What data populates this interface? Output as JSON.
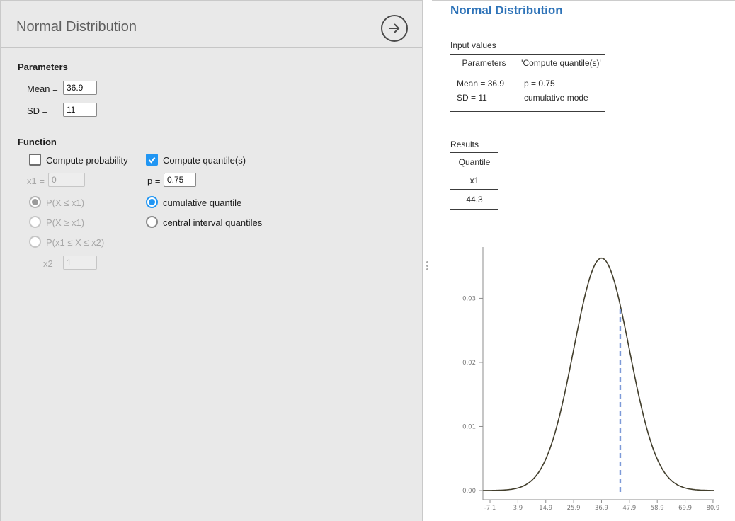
{
  "left_panel": {
    "title": "Normal Distribution",
    "parameters": {
      "heading": "Parameters",
      "mean_label": "Mean =",
      "mean_value": "36.9",
      "sd_label": "SD =",
      "sd_value": "11"
    },
    "function_section": {
      "heading": "Function",
      "compute_probability_label": "Compute probability",
      "compute_probability_checked": false,
      "compute_quantiles_label": "Compute quantile(s)",
      "compute_quantiles_checked": true,
      "x1_label": "x1 =",
      "x1_value": "0",
      "p_label": "p =",
      "p_value": "0.75",
      "prob_options": [
        "P(X ≤ x1)",
        "P(X ≥ x1)",
        "P(x1 ≤ X ≤ x2)"
      ],
      "prob_selected_index": 0,
      "x2_label": "x2 =",
      "x2_value": "1",
      "quantile_options": [
        "cumulative quantile",
        "central interval quantiles"
      ],
      "quantile_selected": "cumulative quantile"
    }
  },
  "right_panel": {
    "title": "Normal Distribution",
    "input_values": {
      "heading": "Input values",
      "columns": [
        "Parameters",
        "'Compute quantile(s)'"
      ],
      "rows": [
        [
          "Mean = 36.9",
          "p = 0.75"
        ],
        [
          "SD = 11",
          "cumulative mode"
        ]
      ]
    },
    "results": {
      "heading": "Results",
      "group_header": "Quantile",
      "column_header": "x1",
      "value": "44.3"
    }
  },
  "chart_data": {
    "type": "line",
    "distribution": "normal-pdf",
    "title": "",
    "xlabel": "",
    "ylabel": "",
    "mean": 36.9,
    "sd": 11,
    "x_ticks": [
      -7.1,
      3.9,
      14.9,
      25.9,
      36.9,
      47.9,
      58.9,
      69.9,
      80.9
    ],
    "y_ticks": [
      0,
      0.01,
      0.02,
      0.03
    ],
    "xlim": [
      -9.9,
      81.2
    ],
    "ylim": [
      0,
      0.038
    ],
    "peak_density": 0.0363,
    "quantile_line_x": 44.3,
    "quantile_line_top_density": 0.0289,
    "curve_color": "#423e2c",
    "quantile_line_color": "#7d9ad8",
    "axis_color": "#8c8c8c",
    "tick_label_color": "#7a7a7a",
    "grid": false,
    "legend": false
  }
}
